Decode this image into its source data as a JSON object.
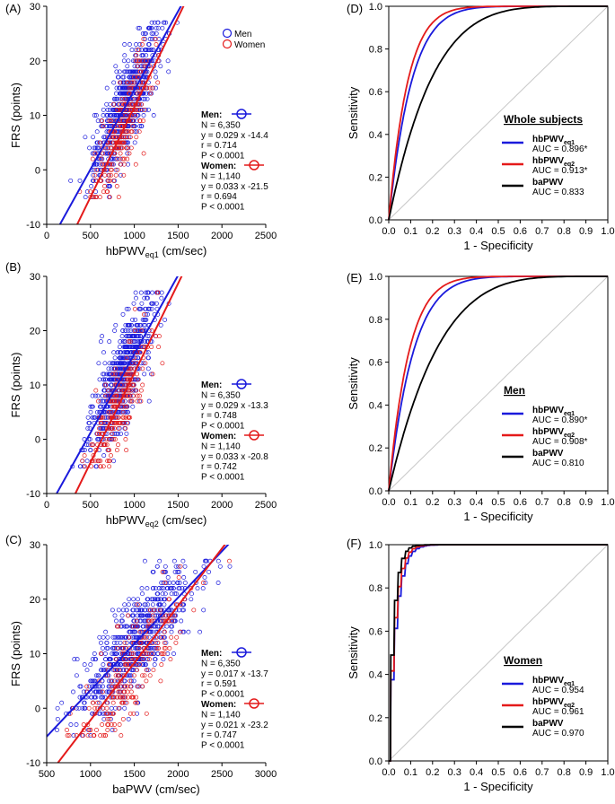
{
  "colors": {
    "men": "#1a1adc",
    "women": "#e41a1a",
    "black": "#000000",
    "diag": "#c8c8c8"
  },
  "chart_data": [
    {
      "panel": "(A)",
      "type": "scatter",
      "xlabel": "hbPWV",
      "xsub": "eq1",
      "xunit": " (cm/sec)",
      "ylabel": "FRS (points)",
      "xlim": [
        0,
        2500
      ],
      "ylim": [
        -10,
        30
      ],
      "xticks": [
        "0",
        "500",
        "1000",
        "1500",
        "2000",
        "2500"
      ],
      "yticks": [
        "-10",
        "0",
        "10",
        "20",
        "30"
      ],
      "legend": {
        "men": "Men",
        "women": "Women"
      },
      "men": {
        "label": "Men:",
        "n": "N = 6,350",
        "eq": "y = 0.029 x -14.4",
        "r": "r = 0.714",
        "p": "P < 0.0001",
        "slope": 0.029,
        "intercept": -14.4,
        "xmean": 900,
        "xsd": 180
      },
      "women": {
        "label": "Women:",
        "n": "N = 1,140",
        "eq": "y = 0.033 x -21.5",
        "r": "r = 0.694",
        "p": "P < 0.0001",
        "slope": 0.033,
        "intercept": -21.5,
        "xmean": 880,
        "xsd": 170
      }
    },
    {
      "panel": "(B)",
      "type": "scatter",
      "xlabel": "hbPWV",
      "xsub": "eq2",
      "xunit": " (cm/sec)",
      "ylabel": "FRS (points)",
      "xlim": [
        0,
        2500
      ],
      "ylim": [
        -10,
        30
      ],
      "xticks": [
        "0",
        "500",
        "1000",
        "1500",
        "2000",
        "2500"
      ],
      "yticks": [
        "-10",
        "0",
        "10",
        "20",
        "30"
      ],
      "men": {
        "label": "Men:",
        "n": "N = 6,350",
        "eq": "y = 0.029 x -13.3",
        "r": "r = 0.748",
        "p": "P < 0.0001",
        "slope": 0.029,
        "intercept": -13.3,
        "xmean": 860,
        "xsd": 180
      },
      "women": {
        "label": "Women:",
        "n": "N = 1,140",
        "eq": "y = 0.033 x -20.8",
        "r": "r = 0.742",
        "p": "P < 0.0001",
        "slope": 0.033,
        "intercept": -20.8,
        "xmean": 840,
        "xsd": 170
      }
    },
    {
      "panel": "(C)",
      "type": "scatter",
      "xlabel": "baPWV",
      "xsub": "",
      "xunit": " (cm/sec)",
      "ylabel": "FRS (points)",
      "xlim": [
        500,
        3000
      ],
      "ylim": [
        -10,
        30
      ],
      "xticks": [
        "500",
        "1000",
        "1500",
        "2000",
        "2500",
        "3000"
      ],
      "yticks": [
        "-10",
        "0",
        "10",
        "20",
        "30"
      ],
      "men": {
        "label": "Men:",
        "n": "N = 6,350",
        "eq": "y = 0.017 x -13.7",
        "r": "r = 0.591",
        "p": "P < 0.0001",
        "slope": 0.017,
        "intercept": -13.7,
        "xmean": 1500,
        "xsd": 330
      },
      "women": {
        "label": "Women:",
        "n": "N = 1,140",
        "eq": "y = 0.021 x -23.2",
        "r": "r = 0.747",
        "p": "P < 0.0001",
        "slope": 0.021,
        "intercept": -23.2,
        "xmean": 1450,
        "xsd": 300
      }
    },
    {
      "panel": "(D)",
      "type": "line",
      "title": "Whole subjects",
      "xlabel": "1 - Specificity",
      "ylabel": "Sensitivity",
      "xlim": [
        0,
        1
      ],
      "ylim": [
        0,
        1
      ],
      "ticks": [
        "0.0",
        "0.2",
        "0.4",
        "0.6",
        "0.8",
        "1.0"
      ],
      "xticks": [
        "0.0",
        "0.1",
        "0.2",
        "0.3",
        "0.4",
        "0.5",
        "0.6",
        "0.7",
        "0.8",
        "0.9",
        "1.0"
      ],
      "series": [
        {
          "name": "hbPWV",
          "sub": "eq1",
          "auc": "AUC = 0.896*",
          "color": "men",
          "k": 9.5
        },
        {
          "name": "hbPWV",
          "sub": "eq2",
          "auc": "AUC = 0.913*",
          "color": "women",
          "k": 11.5
        },
        {
          "name": "baPWV",
          "sub": "",
          "auc": "AUC = 0.833",
          "color": "black",
          "k": 5.0
        }
      ]
    },
    {
      "panel": "(E)",
      "type": "line",
      "title": "Men",
      "xlabel": "1 - Specificity",
      "ylabel": "Sensitivity",
      "xlim": [
        0,
        1
      ],
      "ylim": [
        0,
        1
      ],
      "ticks": [
        "0.0",
        "0.2",
        "0.4",
        "0.6",
        "0.8",
        "1.0"
      ],
      "xticks": [
        "0.0",
        "0.1",
        "0.2",
        "0.3",
        "0.4",
        "0.5",
        "0.6",
        "0.7",
        "0.8",
        "0.9",
        "1.0"
      ],
      "series": [
        {
          "name": "hbPWV",
          "sub": "eq1",
          "auc": "AUC = 0.890*",
          "color": "men",
          "k": 8.8
        },
        {
          "name": "hbPWV",
          "sub": "eq2",
          "auc": "AUC = 0.908*",
          "color": "women",
          "k": 10.8
        },
        {
          "name": "baPWV",
          "sub": "",
          "auc": "AUC = 0.810",
          "color": "black",
          "k": 4.4
        }
      ]
    },
    {
      "panel": "(F)",
      "type": "line",
      "title": "Women",
      "xlabel": "1 - Specificity",
      "ylabel": "Sensitivity",
      "xlim": [
        0,
        1
      ],
      "ylim": [
        0,
        1
      ],
      "ticks": [
        "0.0",
        "0.2",
        "0.4",
        "0.6",
        "0.8",
        "1.0"
      ],
      "xticks": [
        "0.0",
        "0.1",
        "0.2",
        "0.3",
        "0.4",
        "0.5",
        "0.6",
        "0.7",
        "0.8",
        "0.9",
        "1.0"
      ],
      "series": [
        {
          "name": "hbPWV",
          "sub": "eq1",
          "auc": "AUC = 0.954",
          "color": "men",
          "k": 28
        },
        {
          "name": "hbPWV",
          "sub": "eq2",
          "auc": "AUC = 0.961",
          "color": "women",
          "k": 32
        },
        {
          "name": "baPWV",
          "sub": "",
          "auc": "AUC = 0.970",
          "color": "black",
          "k": 40
        }
      ]
    }
  ]
}
